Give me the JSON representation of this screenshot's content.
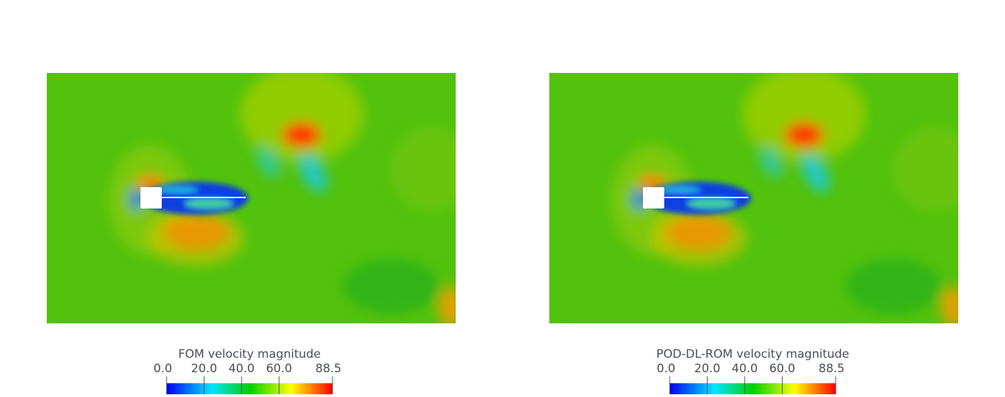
{
  "panels": [
    {
      "colorbar": {
        "title": "FOM velocity magnitude",
        "range": [
          0,
          88.5
        ],
        "ticks": [
          {
            "value": 0,
            "label": "0.0"
          },
          {
            "value": 20,
            "label": "20.0"
          },
          {
            "value": 40,
            "label": "40.0"
          },
          {
            "value": 60,
            "label": "60.0"
          },
          {
            "value": 88.5,
            "label": "88.5"
          }
        ]
      }
    },
    {
      "colorbar": {
        "title": "POD-DL-ROM velocity magnitude",
        "range": [
          0,
          88.5
        ],
        "ticks": [
          {
            "value": 0,
            "label": "0.0"
          },
          {
            "value": 20,
            "label": "20.0"
          },
          {
            "value": 40,
            "label": "40.0"
          },
          {
            "value": 60,
            "label": "60.0"
          },
          {
            "value": 88.5,
            "label": "88.5"
          }
        ]
      }
    }
  ]
}
